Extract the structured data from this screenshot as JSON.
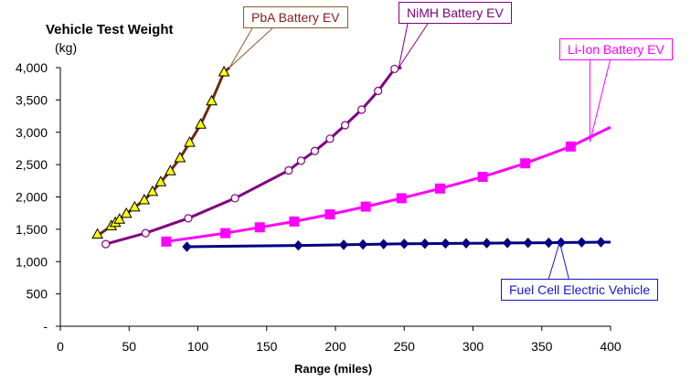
{
  "chart_data": {
    "type": "line",
    "title": "Vehicle Test Weight",
    "ylabel": "(kg)",
    "xlabel": "Range (miles)",
    "xlim": [
      0,
      400
    ],
    "ylim": [
      0,
      4000
    ],
    "x_ticks": [
      0,
      50,
      100,
      150,
      200,
      250,
      300,
      350,
      400
    ],
    "y_ticks": [
      0,
      500,
      1000,
      1500,
      2000,
      2500,
      3000,
      3500,
      4000
    ],
    "x_tick_labels": [
      "0",
      "50",
      "100",
      "150",
      "200",
      "250",
      "300",
      "350",
      "400"
    ],
    "y_tick_labels": [
      "-",
      "500",
      "1,000",
      "1,500",
      "2,000",
      "2,500",
      "3,000",
      "3,500",
      "4,000"
    ],
    "grid": false,
    "series": [
      {
        "name": "PbA Battery EV",
        "color": "#6b2c10",
        "marker_fill": "#ffff00",
        "marker": "triangle",
        "x": [
          27,
          37,
          40,
          43,
          48,
          54,
          61,
          67,
          73,
          80,
          87,
          94,
          102,
          110,
          119
        ],
        "y": [
          1420,
          1550,
          1600,
          1650,
          1740,
          1840,
          1950,
          2080,
          2230,
          2400,
          2600,
          2840,
          3120,
          3480,
          3930
        ],
        "line_x": [
          27,
          37,
          40,
          43,
          48,
          54,
          61,
          67,
          73,
          80,
          87,
          94,
          102,
          110,
          119,
          123
        ],
        "line_y": [
          1400,
          1550,
          1600,
          1650,
          1740,
          1840,
          1950,
          2080,
          2230,
          2400,
          2600,
          2840,
          3120,
          3480,
          3930,
          4000
        ]
      },
      {
        "name": "NiMH Battery EV",
        "color": "#800080",
        "marker_fill": "#ffffff",
        "marker": "circle",
        "x": [
          33,
          62,
          93,
          127,
          166,
          175,
          185,
          196,
          207,
          219,
          231,
          243
        ],
        "y": [
          1270,
          1440,
          1670,
          1980,
          2410,
          2560,
          2710,
          2900,
          3110,
          3350,
          3640,
          3980
        ],
        "line_x": [
          33,
          62,
          93,
          127,
          166,
          175,
          185,
          196,
          207,
          219,
          231,
          243,
          248
        ],
        "line_y": [
          1270,
          1440,
          1670,
          1980,
          2410,
          2560,
          2710,
          2900,
          3110,
          3350,
          3640,
          3980,
          4000
        ]
      },
      {
        "name": "Li-Ion Battery EV",
        "color": "#ff00ff",
        "marker_fill": "#ff00ff",
        "marker": "square",
        "x": [
          77,
          120,
          145,
          170,
          196,
          222,
          248,
          276,
          307,
          338,
          371
        ],
        "y": [
          1310,
          1440,
          1530,
          1620,
          1730,
          1850,
          1980,
          2130,
          2310,
          2520,
          2780
        ],
        "line_x": [
          77,
          120,
          145,
          170,
          196,
          222,
          248,
          276,
          307,
          338,
          371,
          400
        ],
        "line_y": [
          1310,
          1440,
          1530,
          1620,
          1730,
          1850,
          1980,
          2130,
          2310,
          2520,
          2780,
          3080
        ]
      },
      {
        "name": "Fuel Cell Electric Vehicle",
        "color": "#000080",
        "marker_fill": "#000080",
        "marker": "diamond",
        "x": [
          92,
          173,
          206,
          220,
          235,
          250,
          265,
          280,
          295,
          310,
          325,
          340,
          355,
          364,
          379,
          393
        ],
        "y": [
          1230,
          1250,
          1260,
          1265,
          1270,
          1275,
          1278,
          1280,
          1283,
          1285,
          1288,
          1290,
          1292,
          1295,
          1298,
          1300
        ],
        "line_x": [
          92,
          173,
          206,
          220,
          235,
          250,
          265,
          280,
          295,
          310,
          325,
          340,
          355,
          364,
          379,
          393,
          400
        ],
        "line_y": [
          1230,
          1250,
          1260,
          1265,
          1270,
          1275,
          1278,
          1280,
          1283,
          1285,
          1288,
          1290,
          1292,
          1295,
          1298,
          1300,
          1300
        ]
      }
    ],
    "annotations": [
      {
        "series": 0,
        "text": "PbA Battery EV",
        "color": "#8b1a1a",
        "border": "#8b5a2b",
        "point": [
          123,
          4000
        ]
      },
      {
        "series": 1,
        "text": "NiMH Battery EV",
        "color": "#800080",
        "border": "#800080",
        "point": [
          246,
          4000
        ]
      },
      {
        "series": 2,
        "text": "Li-Ion Battery EV",
        "color": "#ff00ff",
        "border": "#ff00ff",
        "point": [
          385,
          2850
        ]
      },
      {
        "series": 3,
        "text": "Fuel Cell Electric Vehicle",
        "color": "#1515cc",
        "border": "#1515cc",
        "point": [
          363,
          1300
        ]
      }
    ]
  }
}
